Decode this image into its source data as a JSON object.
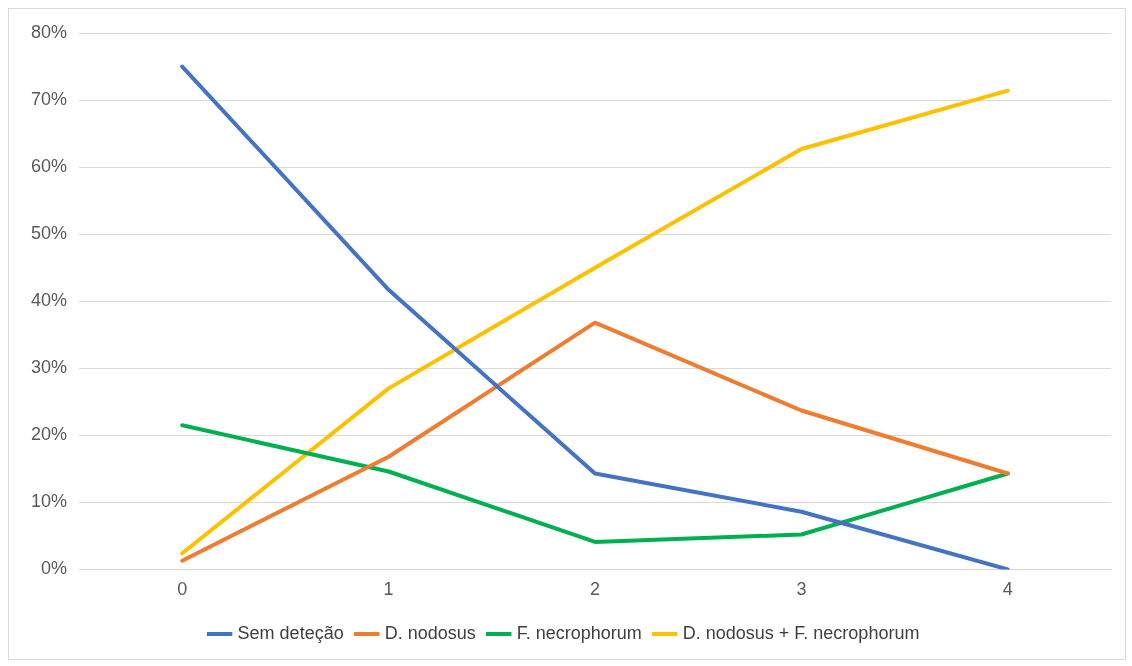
{
  "chart_data": {
    "type": "line",
    "categories": [
      "0",
      "1",
      "2",
      "3",
      "4"
    ],
    "series": [
      {
        "name": "Sem deteção",
        "color": "#4472c4",
        "values": [
          75,
          41.7,
          14.3,
          8.6,
          0
        ]
      },
      {
        "name": "D. nodosus",
        "color": "#ed7d31",
        "values": [
          1.3,
          16.8,
          36.8,
          23.7,
          14.3
        ]
      },
      {
        "name": "F. necrophorum",
        "color": "#00b050",
        "values": [
          21.5,
          14.6,
          4.1,
          5.2,
          14.3
        ]
      },
      {
        "name": "D. nodosus + F. necrophorum",
        "color": "#ffc000",
        "values": [
          2.4,
          27,
          45,
          62.7,
          71.4
        ]
      }
    ],
    "ylim": [
      0,
      80
    ],
    "yticks": [
      {
        "value": 0,
        "label": "0%"
      },
      {
        "value": 10,
        "label": "10%"
      },
      {
        "value": 20,
        "label": "20%"
      },
      {
        "value": 30,
        "label": "30%"
      },
      {
        "value": 40,
        "label": "40%"
      },
      {
        "value": 50,
        "label": "50%"
      },
      {
        "value": 60,
        "label": "60%"
      },
      {
        "value": 70,
        "label": "70%"
      },
      {
        "value": 80,
        "label": "80%"
      }
    ],
    "grid": "y",
    "legend": "bottom",
    "marker": "none",
    "line_style": "solid"
  }
}
